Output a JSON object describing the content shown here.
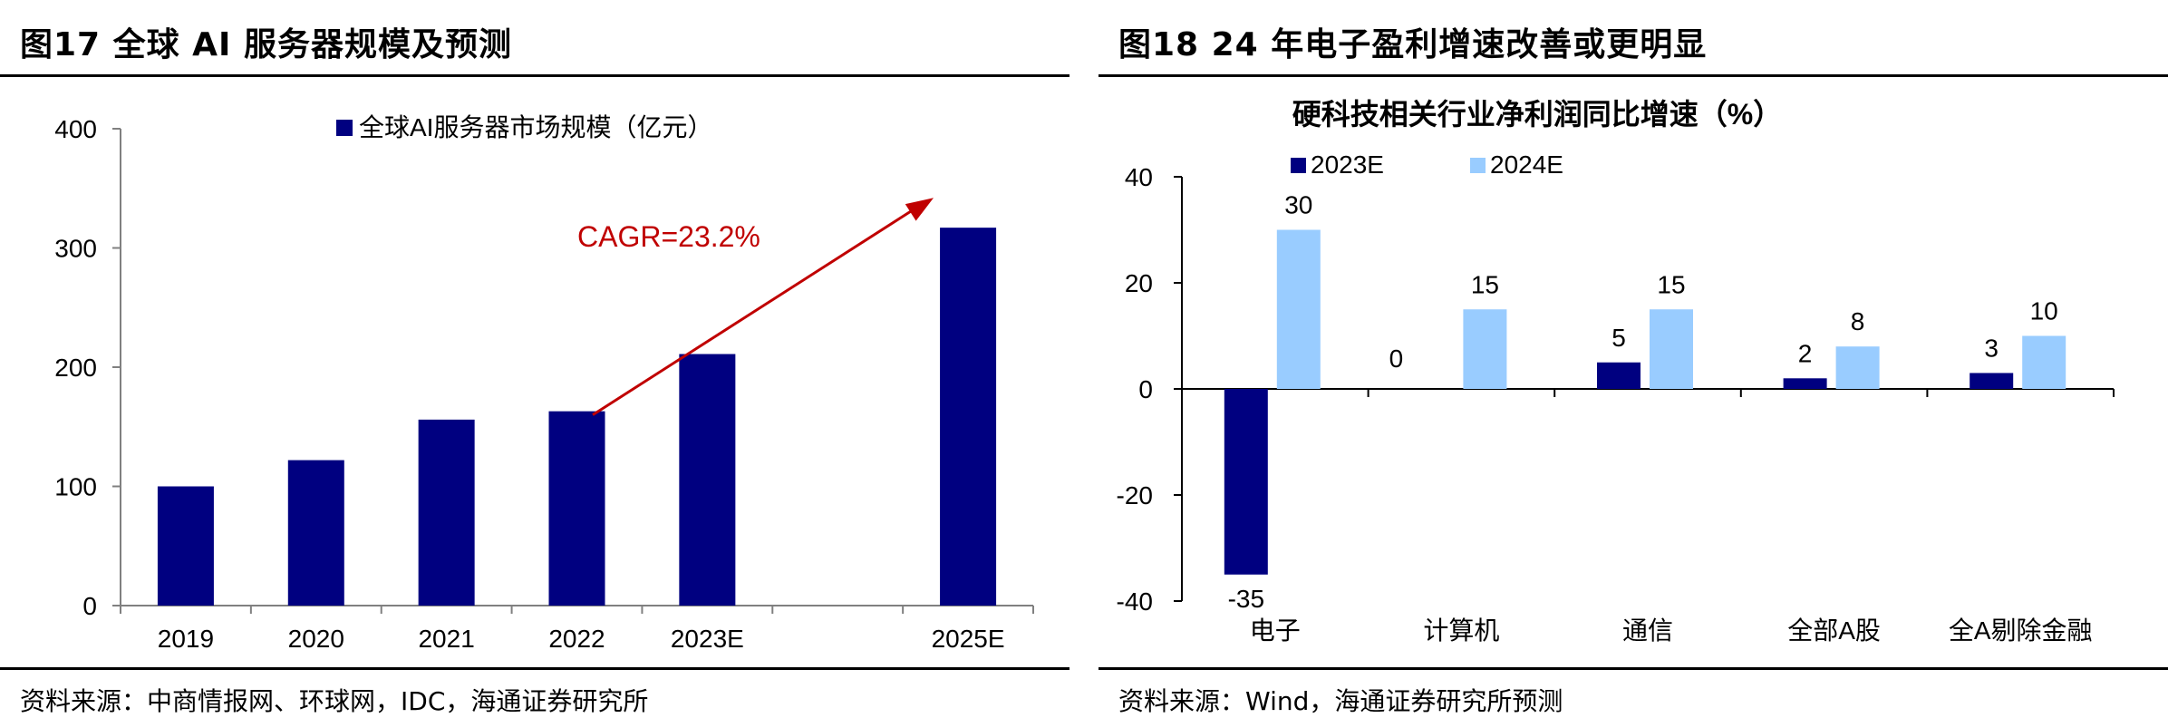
{
  "figures": [
    {
      "title": "图17 全球 AI 服务器规模及预测",
      "source": "资料来源：中商情报网、环球网，IDC，海通证券研究所"
    },
    {
      "title": "图18 24 年电子盈利增速改善或更明显",
      "source": "资料来源：Wind，海通证券研究所预测"
    }
  ],
  "chart_data": [
    {
      "type": "bar",
      "title": "",
      "categories": [
        "2019",
        "2020",
        "2021",
        "2022",
        "2023E",
        "2025E"
      ],
      "series": [
        {
          "name": "全球AI服务器市场规模（亿元）",
          "values": [
            100,
            122,
            156,
            163,
            211,
            317
          ]
        }
      ],
      "ylim": [
        0,
        400
      ],
      "yticks": [
        "0",
        "100",
        "200",
        "300",
        "400"
      ],
      "legend_position": "top",
      "annotation": "CAGR=23.2%",
      "colors": {
        "bar": "#000080",
        "annotation": "#C00000"
      }
    },
    {
      "type": "bar",
      "title": "硬科技相关行业净利润同比增速（%）",
      "categories": [
        "电子",
        "计算机",
        "通信",
        "全部A股",
        "全A剔除金融"
      ],
      "series": [
        {
          "name": "2023E",
          "values": [
            -35,
            0,
            5,
            2,
            3
          ],
          "labels": [
            "-35",
            "0",
            "5",
            "2",
            "3"
          ]
        },
        {
          "name": "2024E",
          "values": [
            30,
            15,
            15,
            8,
            10
          ],
          "labels": [
            "30",
            "15",
            "15",
            "8",
            "10"
          ]
        }
      ],
      "ylim": [
        -40,
        40
      ],
      "yticks": [
        "40",
        "20",
        "0",
        "-20",
        "-40"
      ],
      "legend_position": "top",
      "colors": {
        "series_2023": "#000080",
        "series_2024": "#99CCFF"
      }
    }
  ]
}
